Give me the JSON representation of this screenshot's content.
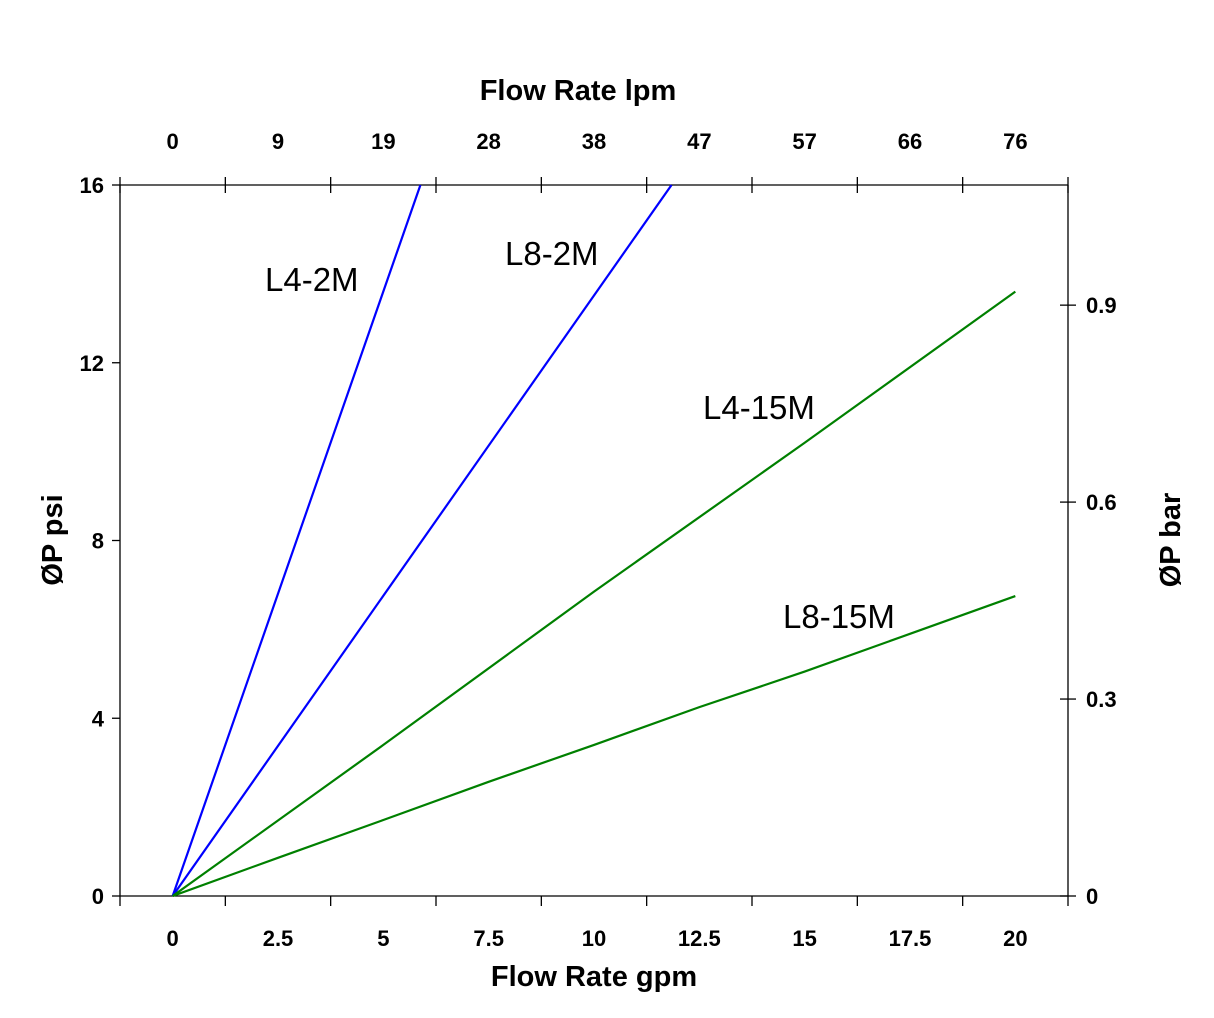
{
  "chart_data": {
    "type": "line",
    "xlabel": "Flow Rate gpm",
    "x2label": "Flow Rate lpm",
    "ylabel": "ØP psi",
    "y2label": "ØP bar",
    "xlim": [
      -1.25,
      21.25
    ],
    "ylim": [
      0,
      16
    ],
    "y2lim": [
      0,
      1.083
    ],
    "grid": false,
    "x_ticks": [
      "0",
      "2.5",
      "5",
      "7.5",
      "10",
      "12.5",
      "15",
      "17.5",
      "20"
    ],
    "x_tick_values": [
      0,
      2.5,
      5,
      7.5,
      10,
      12.5,
      15,
      17.5,
      20
    ],
    "x2_ticks": [
      "0",
      "9",
      "19",
      "28",
      "38",
      "47",
      "57",
      "66",
      "76"
    ],
    "y_ticks": [
      "0",
      "4",
      "8",
      "12",
      "16"
    ],
    "y_tick_values": [
      0,
      4,
      8,
      12,
      16
    ],
    "y2_ticks": [
      "0",
      "0.3",
      "0.6",
      "0.9"
    ],
    "y2_tick_values": [
      0,
      0.3,
      0.6,
      0.9
    ],
    "series": [
      {
        "name": "L4-2M",
        "color": "#0000ff",
        "x": [
          0,
          5.88
        ],
        "y": [
          0,
          16
        ]
      },
      {
        "name": "L8-2M",
        "color": "#0000ff",
        "x": [
          0,
          11.84
        ],
        "y": [
          0,
          16
        ]
      },
      {
        "name": "L4-15M",
        "color": "#008000",
        "x": [
          0,
          5,
          10,
          15,
          20
        ],
        "y": [
          0,
          3.4,
          6.85,
          10.2,
          13.6
        ]
      },
      {
        "name": "L8-15M",
        "color": "#008000",
        "x": [
          0,
          2.5,
          5,
          7.5,
          10,
          12.5,
          15,
          17.5,
          20
        ],
        "y": [
          0,
          0.86,
          1.71,
          2.57,
          3.4,
          4.25,
          5.05,
          5.9,
          6.75
        ]
      }
    ]
  }
}
